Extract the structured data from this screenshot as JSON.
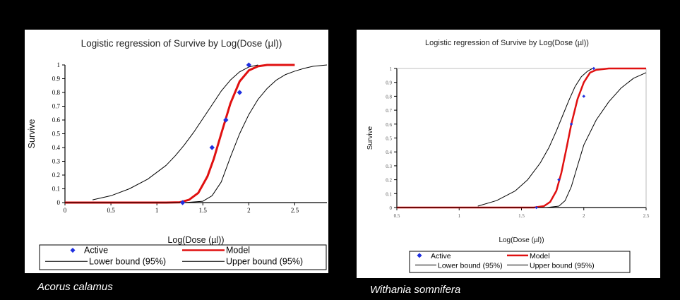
{
  "chart_data": [
    {
      "type": "scatter",
      "title": "Logistic regression of Survive by Log(Dose (µl))",
      "xlabel": "Log(Dose (µl))",
      "ylabel": "Survive",
      "xlim": [
        0,
        2.85
      ],
      "ylim": [
        0,
        1
      ],
      "xticks": [
        {
          "v": 0,
          "label": "0"
        },
        {
          "v": 0.5,
          "label": "0.5"
        },
        {
          "v": 1,
          "label": "1"
        },
        {
          "v": 1.5,
          "label": "1.5"
        },
        {
          "v": 2,
          "label": "2"
        },
        {
          "v": 2.5,
          "label": "2.5"
        }
      ],
      "yticks": [
        {
          "v": 0,
          "label": "0"
        },
        {
          "v": 0.1,
          "label": "0.1"
        },
        {
          "v": 0.2,
          "label": "0.2"
        },
        {
          "v": 0.3,
          "label": "0.3"
        },
        {
          "v": 0.4,
          "label": "0.4"
        },
        {
          "v": 0.5,
          "label": "0.5"
        },
        {
          "v": 0.6,
          "label": "0.6"
        },
        {
          "v": 0.7,
          "label": "0.7"
        },
        {
          "v": 0.8,
          "label": "0.8"
        },
        {
          "v": 0.9,
          "label": "0.9"
        },
        {
          "v": 1,
          "label": "1"
        }
      ],
      "grid": false,
      "legend_position": "bottom",
      "legend": {
        "active": "Active",
        "model": "Model",
        "lower": "Lower bound (95%)",
        "upper": "Upper bound (95%)"
      },
      "series": [
        {
          "name": "Active",
          "kind": "points",
          "color": "#1f2fe0",
          "x": [
            1.28,
            1.6,
            1.75,
            1.9,
            2.0
          ],
          "y": [
            0,
            0.4,
            0.6,
            0.8,
            1.0
          ]
        },
        {
          "name": "Model",
          "kind": "line",
          "color": "#e01010",
          "x": [
            0.0,
            0.8,
            1.1,
            1.25,
            1.35,
            1.45,
            1.55,
            1.62,
            1.7,
            1.8,
            1.9,
            2.0,
            2.1,
            2.2,
            2.5
          ],
          "y": [
            0.0,
            0.0,
            0.0,
            0.002,
            0.02,
            0.07,
            0.19,
            0.32,
            0.5,
            0.72,
            0.88,
            0.96,
            0.99,
            1.0,
            1.0
          ]
        },
        {
          "name": "Lower bound (95%)",
          "kind": "line",
          "color": "#000000",
          "x": [
            0.3,
            0.5,
            0.7,
            0.9,
            1.1,
            1.2,
            1.3,
            1.4,
            1.5,
            1.6,
            1.7,
            1.8,
            1.9,
            2.0,
            2.1
          ],
          "y": [
            0.02,
            0.05,
            0.1,
            0.17,
            0.27,
            0.34,
            0.42,
            0.51,
            0.61,
            0.71,
            0.81,
            0.89,
            0.95,
            0.985,
            1.0
          ]
        },
        {
          "name": "Upper bound (95%)",
          "kind": "line",
          "color": "#000000",
          "x": [
            0.0,
            1.0,
            1.3,
            1.5,
            1.6,
            1.7,
            1.8,
            1.9,
            2.0,
            2.1,
            2.2,
            2.3,
            2.4,
            2.5,
            2.6,
            2.7,
            2.85
          ],
          "y": [
            0.0,
            0.0,
            0.0,
            0.01,
            0.05,
            0.15,
            0.33,
            0.5,
            0.64,
            0.75,
            0.83,
            0.89,
            0.93,
            0.955,
            0.975,
            0.99,
            1.0
          ]
        }
      ],
      "caption": "Acorus calamus"
    },
    {
      "type": "scatter",
      "title": "Logistic regression of Survive by Log(Dose (µl))",
      "xlabel": "Log(Dose (µl))",
      "ylabel": "Survive",
      "xlim": [
        0.5,
        2.5
      ],
      "ylim": [
        0,
        1
      ],
      "xticks": [
        {
          "v": 0.5,
          "label": "0.5"
        },
        {
          "v": 1,
          "label": "1"
        },
        {
          "v": 1.5,
          "label": "1.5"
        },
        {
          "v": 2,
          "label": "2"
        },
        {
          "v": 2.5,
          "label": "2.5"
        }
      ],
      "yticks": [
        {
          "v": 0,
          "label": "0"
        },
        {
          "v": 0.1,
          "label": "0.1"
        },
        {
          "v": 0.2,
          "label": "0.2"
        },
        {
          "v": 0.3,
          "label": "0.3"
        },
        {
          "v": 0.4,
          "label": "0.4"
        },
        {
          "v": 0.5,
          "label": "0.5"
        },
        {
          "v": 0.6,
          "label": "0.6"
        },
        {
          "v": 0.7,
          "label": "0.7"
        },
        {
          "v": 0.8,
          "label": "0.8"
        },
        {
          "v": 0.9,
          "label": "0.9"
        },
        {
          "v": 1,
          "label": "1"
        }
      ],
      "grid": false,
      "legend_position": "bottom",
      "legend": {
        "active": "Active",
        "model": "Model",
        "lower": "Lower bound (95%)",
        "upper": "Upper bound (95%)"
      },
      "series": [
        {
          "name": "Active",
          "kind": "points",
          "color": "#1f2fe0",
          "x": [
            1.62,
            1.8,
            1.9,
            2.0,
            2.08
          ],
          "y": [
            0,
            0.2,
            0.6,
            0.8,
            1.0
          ]
        },
        {
          "name": "Model",
          "kind": "line",
          "color": "#e01010",
          "x": [
            0.5,
            1.5,
            1.6,
            1.68,
            1.73,
            1.78,
            1.82,
            1.86,
            1.9,
            1.95,
            2.0,
            2.05,
            2.1,
            2.2,
            2.5
          ],
          "y": [
            0.0,
            0.0,
            0.0,
            0.01,
            0.04,
            0.12,
            0.25,
            0.42,
            0.6,
            0.78,
            0.9,
            0.97,
            0.99,
            1.0,
            1.0
          ]
        },
        {
          "name": "Lower bound (95%)",
          "kind": "line",
          "color": "#000000",
          "x": [
            1.15,
            1.3,
            1.45,
            1.55,
            1.65,
            1.72,
            1.78,
            1.83,
            1.88,
            1.93,
            1.98,
            2.03,
            2.07
          ],
          "y": [
            0.01,
            0.05,
            0.12,
            0.2,
            0.32,
            0.43,
            0.55,
            0.66,
            0.77,
            0.87,
            0.94,
            0.98,
            1.0
          ]
        },
        {
          "name": "Upper bound (95%)",
          "kind": "line",
          "color": "#000000",
          "x": [
            0.5,
            1.7,
            1.8,
            1.85,
            1.9,
            1.95,
            2.0,
            2.1,
            2.2,
            2.3,
            2.4,
            2.5
          ],
          "y": [
            0.0,
            0.0,
            0.01,
            0.05,
            0.15,
            0.3,
            0.45,
            0.63,
            0.76,
            0.86,
            0.93,
            0.97
          ]
        }
      ],
      "caption": "Withania somnifera"
    }
  ]
}
